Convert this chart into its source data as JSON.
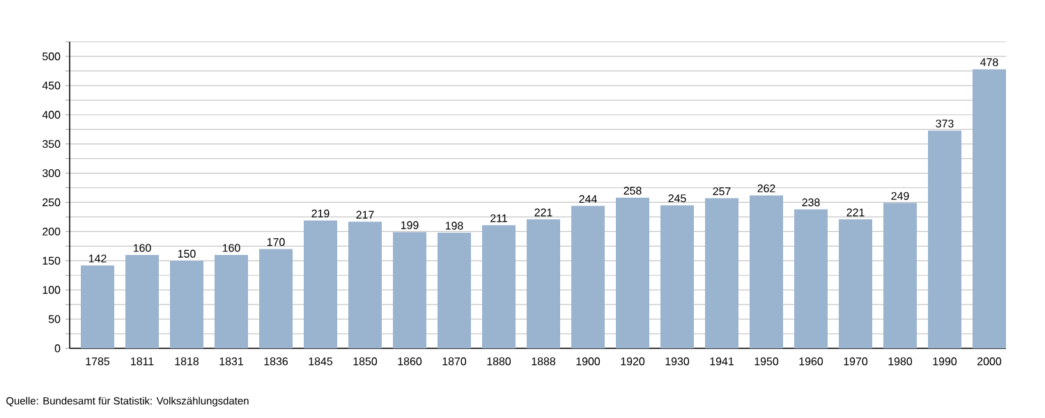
{
  "chart_data": {
    "type": "bar",
    "categories": [
      "1785",
      "1811",
      "1818",
      "1831",
      "1836",
      "1845",
      "1850",
      "1860",
      "1870",
      "1880",
      "1888",
      "1900",
      "1920",
      "1930",
      "1941",
      "1950",
      "1960",
      "1970",
      "1980",
      "1990",
      "2000"
    ],
    "values": [
      142,
      160,
      150,
      160,
      170,
      219,
      217,
      199,
      198,
      211,
      221,
      244,
      258,
      245,
      257,
      262,
      238,
      221,
      249,
      373,
      478
    ],
    "color": "#9ab3cf",
    "ylim": [
      0,
      525
    ],
    "yticks": [
      0,
      {
        "value": 25,
        "label": null
      },
      50,
      {
        "value": 75,
        "label": null
      },
      100,
      {
        "value": 125,
        "label": null
      },
      150,
      {
        "value": 175,
        "label": null
      },
      200,
      {
        "value": 225,
        "label": null
      },
      250,
      {
        "value": 275,
        "label": null
      },
      300,
      {
        "value": 325,
        "label": null
      },
      350,
      {
        "value": 375,
        "label": null
      },
      400,
      {
        "value": 425,
        "label": null
      },
      450,
      {
        "value": 475,
        "label": null
      },
      500,
      {
        "value": 525,
        "label": null
      }
    ],
    "grid": "y",
    "data_labels": true,
    "annotations": [
      "Quelle: Bundesamt für Statistik: Volkszählungsdaten"
    ]
  }
}
